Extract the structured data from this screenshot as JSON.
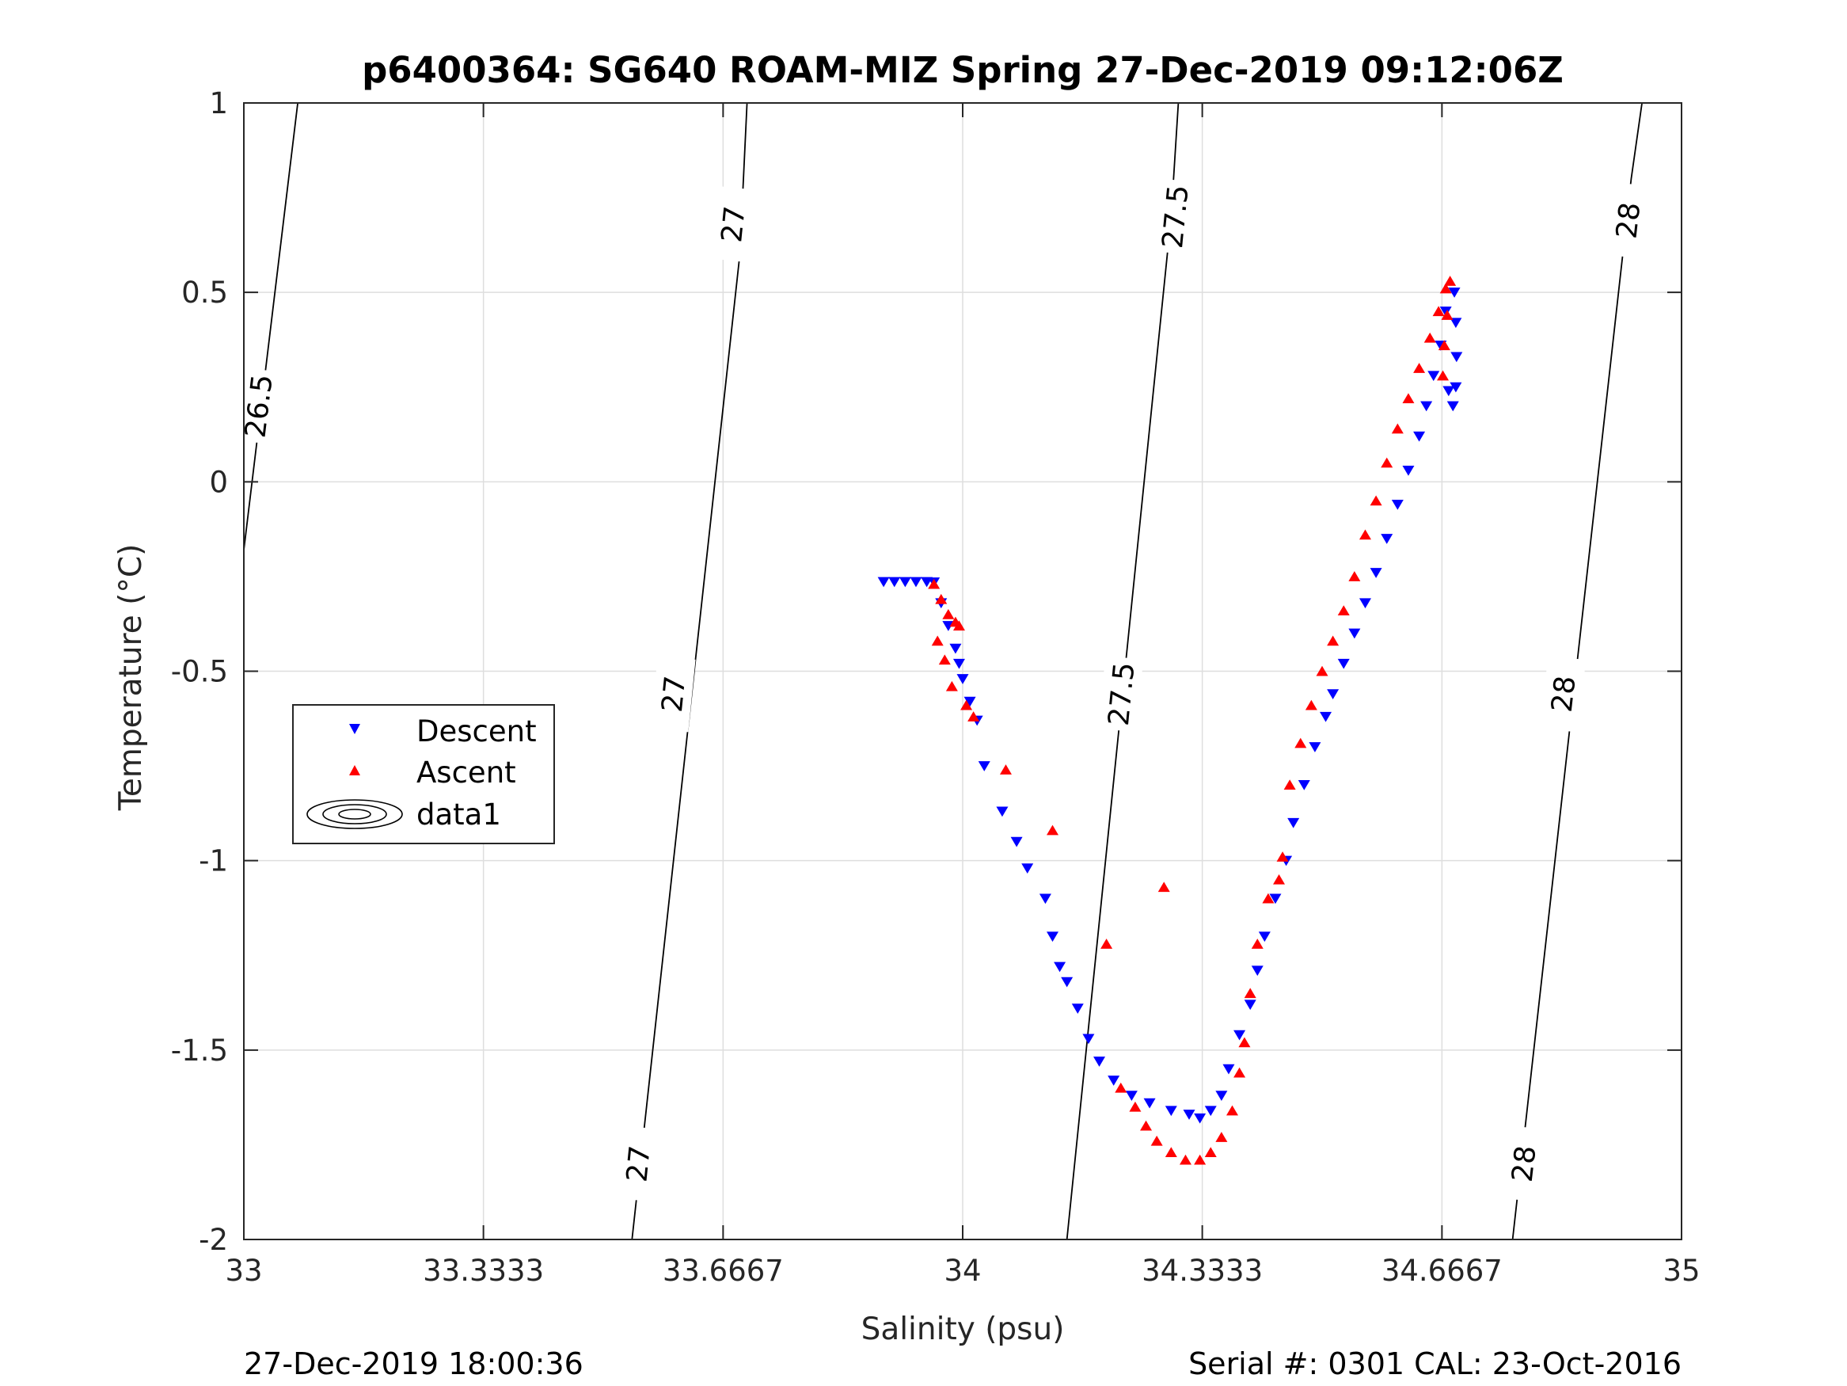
{
  "chart_data": {
    "type": "scatter",
    "title": "p6400364: SG640 ROAM-MIZ Spring 27-Dec-2019 09:12:06Z",
    "xlabel": "Salinity (psu)",
    "ylabel": "Temperature (°C)",
    "xlim": [
      33,
      35
    ],
    "ylim": [
      -2,
      1
    ],
    "grid": true,
    "x_ticks": [
      33,
      33.3333,
      33.6667,
      34,
      34.3333,
      34.6667,
      35
    ],
    "x_tick_labels": [
      "33",
      "33.3333",
      "33.6667",
      "34",
      "34.3333",
      "34.6667",
      "35"
    ],
    "y_ticks": [
      -2,
      -1.5,
      -1,
      -0.5,
      0,
      0.5,
      1
    ],
    "y_tick_labels": [
      "-2",
      "-1.5",
      "-1",
      "-0.5",
      "0",
      "0.5",
      "1"
    ],
    "legend": {
      "placement": "left-middle",
      "entries": [
        "Descent",
        "Ascent",
        "data1"
      ]
    },
    "footer_left": "27-Dec-2019 18:00:36",
    "footer_right": "Serial #: 0301  CAL: 23-Oct-2016",
    "contours": [
      {
        "level": "26.5",
        "points": [
          [
            33.0,
            -0.18
          ],
          [
            33.075,
            1.0
          ]
        ],
        "labels": [
          [
            33.02,
            0.2
          ]
        ]
      },
      {
        "level": "27",
        "points": [
          [
            33.54,
            -2.0
          ],
          [
            33.69,
            0.6
          ],
          [
            33.7,
            1.0
          ]
        ],
        "labels": [
          [
            33.548,
            -1.8
          ],
          [
            33.597,
            -0.56
          ],
          [
            33.68,
            0.68
          ]
        ]
      },
      {
        "level": "27.5",
        "points": [
          [
            34.145,
            -2.0
          ],
          [
            34.29,
            0.7
          ],
          [
            34.3,
            1.0
          ]
        ],
        "labels": [
          [
            34.22,
            -0.56
          ],
          [
            34.295,
            0.7
          ]
        ]
      },
      {
        "level": "28",
        "points": [
          [
            34.765,
            -2.0
          ],
          [
            34.93,
            0.8
          ],
          [
            34.945,
            1.0
          ]
        ],
        "labels": [
          [
            34.78,
            -1.8
          ],
          [
            34.835,
            -0.56
          ],
          [
            34.925,
            0.69
          ]
        ]
      }
    ],
    "series": [
      {
        "name": "Descent",
        "color": "#0000ff",
        "marker": "triangle-down",
        "points": [
          [
            33.89,
            -0.264
          ],
          [
            33.905,
            -0.264
          ],
          [
            33.92,
            -0.264
          ],
          [
            33.935,
            -0.264
          ],
          [
            33.95,
            -0.264
          ],
          [
            33.96,
            -0.265
          ],
          [
            33.97,
            -0.32
          ],
          [
            33.98,
            -0.38
          ],
          [
            33.99,
            -0.44
          ],
          [
            33.995,
            -0.48
          ],
          [
            34.0,
            -0.52
          ],
          [
            34.01,
            -0.58
          ],
          [
            34.02,
            -0.63
          ],
          [
            34.03,
            -0.75
          ],
          [
            34.055,
            -0.87
          ],
          [
            34.075,
            -0.95
          ],
          [
            34.09,
            -1.02
          ],
          [
            34.115,
            -1.1
          ],
          [
            34.125,
            -1.2
          ],
          [
            34.135,
            -1.28
          ],
          [
            34.145,
            -1.32
          ],
          [
            34.16,
            -1.39
          ],
          [
            34.175,
            -1.47
          ],
          [
            34.19,
            -1.53
          ],
          [
            34.21,
            -1.58
          ],
          [
            34.235,
            -1.62
          ],
          [
            34.26,
            -1.64
          ],
          [
            34.29,
            -1.66
          ],
          [
            34.315,
            -1.67
          ],
          [
            34.33,
            -1.68
          ],
          [
            34.345,
            -1.66
          ],
          [
            34.36,
            -1.62
          ],
          [
            34.37,
            -1.55
          ],
          [
            34.385,
            -1.46
          ],
          [
            34.4,
            -1.38
          ],
          [
            34.41,
            -1.29
          ],
          [
            34.42,
            -1.2
          ],
          [
            34.435,
            -1.1
          ],
          [
            34.45,
            -1.0
          ],
          [
            34.46,
            -0.9
          ],
          [
            34.475,
            -0.8
          ],
          [
            34.49,
            -0.7
          ],
          [
            34.505,
            -0.62
          ],
          [
            34.515,
            -0.56
          ],
          [
            34.53,
            -0.48
          ],
          [
            34.545,
            -0.4
          ],
          [
            34.56,
            -0.32
          ],
          [
            34.575,
            -0.24
          ],
          [
            34.59,
            -0.15
          ],
          [
            34.605,
            -0.06
          ],
          [
            34.62,
            0.03
          ],
          [
            34.635,
            0.12
          ],
          [
            34.645,
            0.2
          ],
          [
            34.655,
            0.28
          ],
          [
            34.665,
            0.36
          ],
          [
            34.672,
            0.45
          ],
          [
            34.684,
            0.5
          ],
          [
            34.686,
            0.42
          ],
          [
            34.687,
            0.33
          ],
          [
            34.686,
            0.25
          ],
          [
            34.682,
            0.2
          ],
          [
            34.676,
            0.24
          ]
        ]
      },
      {
        "name": "Ascent",
        "color": "#ff0000",
        "marker": "triangle-up",
        "points": [
          [
            33.96,
            -0.27
          ],
          [
            33.97,
            -0.31
          ],
          [
            33.98,
            -0.35
          ],
          [
            33.99,
            -0.37
          ],
          [
            33.995,
            -0.38
          ],
          [
            33.965,
            -0.42
          ],
          [
            33.975,
            -0.47
          ],
          [
            33.985,
            -0.54
          ],
          [
            34.005,
            -0.59
          ],
          [
            34.015,
            -0.62
          ],
          [
            34.06,
            -0.76
          ],
          [
            34.125,
            -0.92
          ],
          [
            34.2,
            -1.22
          ],
          [
            34.28,
            -1.07
          ],
          [
            34.22,
            -1.6
          ],
          [
            34.24,
            -1.65
          ],
          [
            34.255,
            -1.7
          ],
          [
            34.27,
            -1.74
          ],
          [
            34.29,
            -1.77
          ],
          [
            34.31,
            -1.79
          ],
          [
            34.33,
            -1.79
          ],
          [
            34.345,
            -1.77
          ],
          [
            34.36,
            -1.73
          ],
          [
            34.375,
            -1.66
          ],
          [
            34.385,
            -1.56
          ],
          [
            34.392,
            -1.48
          ],
          [
            34.4,
            -1.35
          ],
          [
            34.41,
            -1.22
          ],
          [
            34.425,
            -1.1
          ],
          [
            34.44,
            -1.05
          ],
          [
            34.445,
            -0.99
          ],
          [
            34.455,
            -0.8
          ],
          [
            34.47,
            -0.69
          ],
          [
            34.485,
            -0.59
          ],
          [
            34.5,
            -0.5
          ],
          [
            34.515,
            -0.42
          ],
          [
            34.53,
            -0.34
          ],
          [
            34.545,
            -0.25
          ],
          [
            34.56,
            -0.14
          ],
          [
            34.575,
            -0.05
          ],
          [
            34.59,
            0.05
          ],
          [
            34.605,
            0.14
          ],
          [
            34.62,
            0.22
          ],
          [
            34.635,
            0.3
          ],
          [
            34.65,
            0.38
          ],
          [
            34.662,
            0.45
          ],
          [
            34.672,
            0.51
          ],
          [
            34.678,
            0.53
          ],
          [
            34.674,
            0.44
          ],
          [
            34.67,
            0.36
          ],
          [
            34.668,
            0.28
          ]
        ]
      }
    ]
  }
}
